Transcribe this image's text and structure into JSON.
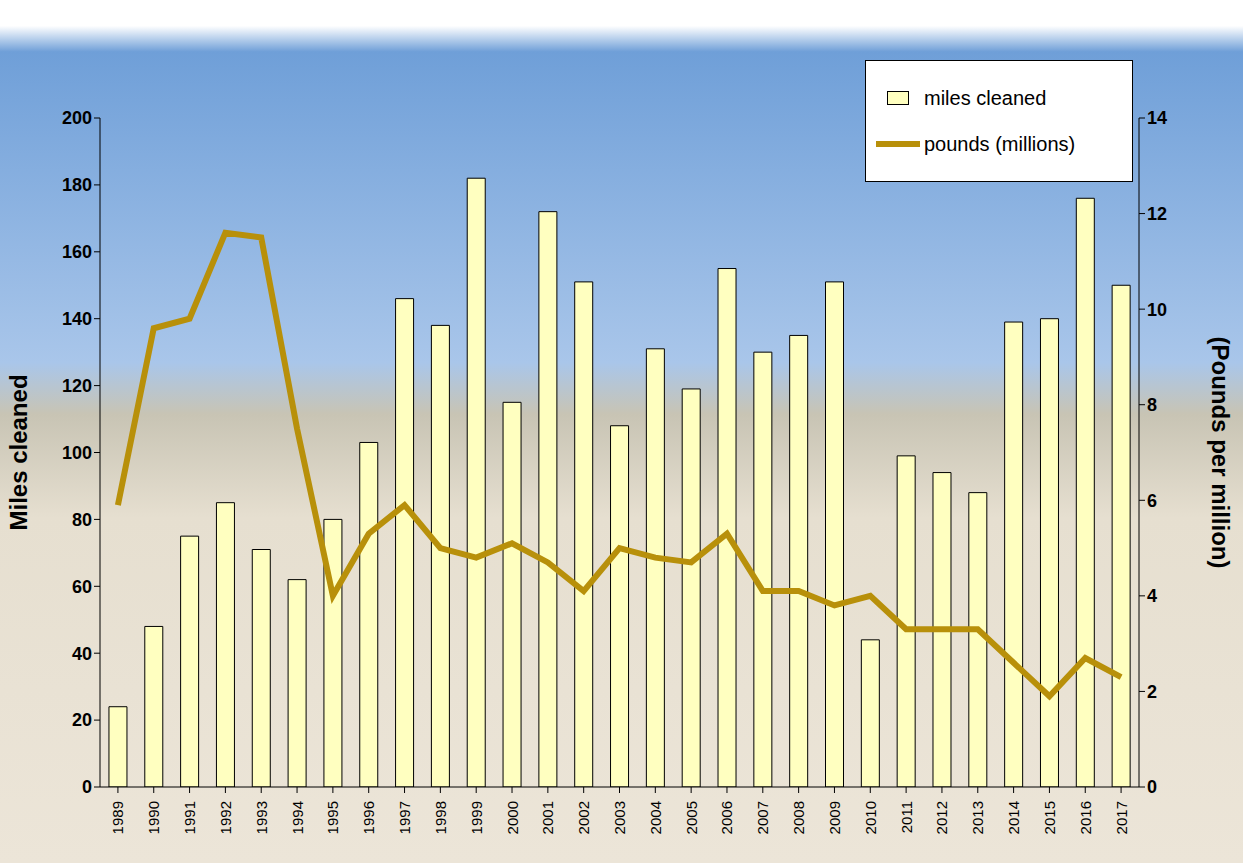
{
  "chart_data": {
    "type": "bar",
    "categories": [
      "1989",
      "1990",
      "1991",
      "1992",
      "1993",
      "1994",
      "1995",
      "1996",
      "1997",
      "1998",
      "1999",
      "2000",
      "2001",
      "2002",
      "2003",
      "2004",
      "2005",
      "2006",
      "2007",
      "2008",
      "2009",
      "2010",
      "2011",
      "2012",
      "2013",
      "2014",
      "2015",
      "2016",
      "2017"
    ],
    "series": [
      {
        "name": "miles cleaned",
        "type": "bar",
        "color": "#ffffc0",
        "values": [
          24,
          48,
          75,
          85,
          71,
          62,
          80,
          103,
          146,
          138,
          182,
          115,
          172,
          151,
          108,
          131,
          119,
          155,
          130,
          135,
          151,
          44,
          99,
          94,
          88,
          139,
          140,
          176,
          150
        ]
      },
      {
        "name": "pounds (millions)",
        "type": "line",
        "color": "#b8900a",
        "axis": "y2",
        "values": [
          5.9,
          9.6,
          9.8,
          11.6,
          11.5,
          7.5,
          4.0,
          5.3,
          5.9,
          5.0,
          4.8,
          5.1,
          4.7,
          4.1,
          5.0,
          4.8,
          4.7,
          5.3,
          4.1,
          4.1,
          3.8,
          4.0,
          3.3,
          3.3,
          3.3,
          2.6,
          1.9,
          2.7,
          2.3
        ]
      }
    ],
    "y_label": "Miles cleaned",
    "y2_label": "(Pounds per million)",
    "ylim": [
      0,
      200
    ],
    "yticks": [
      0,
      20,
      40,
      60,
      80,
      100,
      120,
      140,
      160,
      180,
      200
    ],
    "y2lim": [
      0,
      14
    ],
    "y2ticks": [
      0,
      2,
      4,
      6,
      8,
      10,
      12,
      14
    ],
    "grid": false,
    "legend": "top right"
  }
}
